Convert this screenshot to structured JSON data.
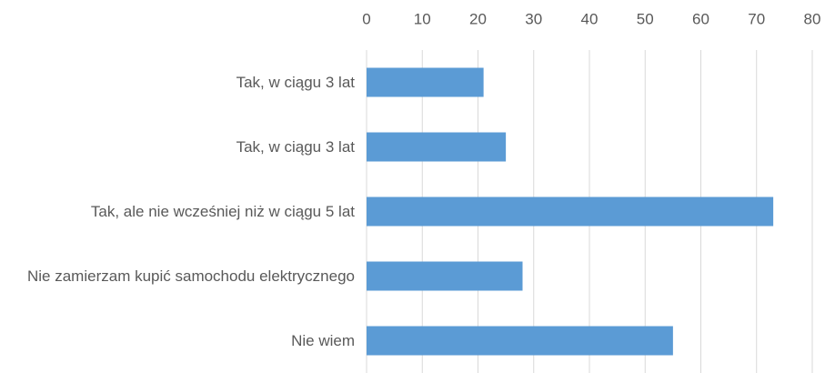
{
  "chart_data": {
    "type": "barh",
    "categories": [
      "Tak, w ciągu 3 lat",
      "Tak, w ciągu 3 lat",
      "Tak, ale nie wcześniej niż w ciągu 5 lat",
      "Nie zamierzam kupić samochodu elektrycznego",
      "Nie wiem"
    ],
    "values": [
      21,
      25,
      73,
      28,
      55
    ],
    "color": "#5b9bd5",
    "xlim": [
      0,
      80
    ],
    "xticks": [
      0,
      10,
      20,
      30,
      40,
      50,
      60,
      70,
      80
    ],
    "grid": true,
    "xaxis_position": "top"
  }
}
